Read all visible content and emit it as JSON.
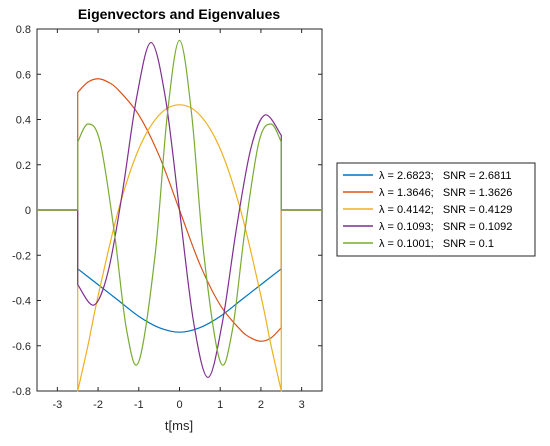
{
  "chart_data": {
    "type": "line",
    "title": "Eigenvectors and Eigenvalues",
    "xlabel": "t[ms]",
    "ylabel": "",
    "xlim": [
      -3.5,
      3.5
    ],
    "ylim": [
      -0.8,
      0.8
    ],
    "xticks": [
      -3,
      -2,
      -1,
      0,
      1,
      2,
      3
    ],
    "xtick_labels": [
      "-3",
      "-2",
      "-1",
      "0",
      "1",
      "2",
      "3"
    ],
    "yticks": [
      -0.8,
      -0.6,
      -0.4,
      -0.2,
      0,
      0.2,
      0.4,
      0.6,
      0.8
    ],
    "ytick_labels": [
      "-0.8",
      "-0.6",
      "-0.4",
      "-0.2",
      "0",
      "0.2",
      "0.4",
      "0.6",
      "0.8"
    ],
    "grid": false,
    "legend_position": "outside-right",
    "support_interval_ms": [
      -2.5,
      2.5
    ],
    "series": [
      {
        "name": "λ = 2.6823;   SNR = 2.6811",
        "color": "#0072BD",
        "x": [
          -3.5,
          -2.5,
          -2.5,
          -2.0,
          -1.5,
          -1.0,
          -0.5,
          0.0,
          0.5,
          1.0,
          1.5,
          2.0,
          2.5,
          2.5,
          3.5
        ],
        "y": [
          0,
          0,
          -0.26,
          -0.33,
          -0.4,
          -0.47,
          -0.52,
          -0.54,
          -0.52,
          -0.47,
          -0.4,
          -0.33,
          -0.26,
          0,
          0
        ]
      },
      {
        "name": "λ = 1.3646;   SNR = 1.3626",
        "color": "#D95319",
        "x": [
          -3.5,
          -2.5,
          -2.5,
          -2.25,
          -2.0,
          -1.75,
          -1.5,
          -1.0,
          -0.5,
          0.0,
          0.5,
          1.0,
          1.5,
          1.75,
          2.0,
          2.25,
          2.5,
          2.5,
          3.5
        ],
        "y": [
          0,
          0,
          0.52,
          0.565,
          0.58,
          0.565,
          0.53,
          0.42,
          0.24,
          0.0,
          -0.24,
          -0.42,
          -0.53,
          -0.565,
          -0.58,
          -0.565,
          -0.52,
          0,
          0
        ]
      },
      {
        "name": "λ = 0.4142;   SNR = 0.4129",
        "color": "#EDB120",
        "x": [
          -3.5,
          -2.5,
          -2.5,
          -2.25,
          -2.0,
          -1.5,
          -1.0,
          -0.5,
          0.0,
          0.5,
          1.0,
          1.5,
          2.0,
          2.25,
          2.5,
          2.5,
          3.5
        ],
        "y": [
          0,
          0,
          -0.8,
          -0.6,
          -0.38,
          0.0,
          0.27,
          0.42,
          0.465,
          0.42,
          0.27,
          0.0,
          -0.38,
          -0.6,
          -0.8,
          0,
          0
        ]
      },
      {
        "name": "λ = 0.1093;   SNR = 0.1092",
        "color": "#7E2F8E",
        "x": [
          -3.5,
          -2.5,
          -2.5,
          -2.1,
          -1.75,
          -1.4,
          -1.05,
          -0.7,
          -0.35,
          0.0,
          0.35,
          0.7,
          1.05,
          1.4,
          1.75,
          2.1,
          2.5,
          2.5,
          3.5
        ],
        "y": [
          0,
          0,
          -0.33,
          -0.42,
          -0.27,
          0.08,
          0.5,
          0.74,
          0.5,
          0.0,
          -0.5,
          -0.74,
          -0.5,
          -0.08,
          0.27,
          0.42,
          0.33,
          0,
          0
        ]
      },
      {
        "name": "λ = 0.1001;   SNR = 0.1",
        "color": "#77AC30",
        "x": [
          -3.5,
          -2.5,
          -2.5,
          -2.25,
          -1.95,
          -1.6,
          -1.3,
          -1.0,
          -0.6,
          -0.3,
          0.0,
          0.3,
          0.6,
          1.0,
          1.3,
          1.6,
          1.95,
          2.25,
          2.5,
          2.5,
          3.5
        ],
        "y": [
          0,
          0,
          0.3,
          0.38,
          0.3,
          -0.1,
          -0.53,
          -0.67,
          -0.2,
          0.42,
          0.75,
          0.42,
          -0.2,
          -0.67,
          -0.53,
          -0.1,
          0.3,
          0.38,
          0.3,
          0,
          0
        ]
      }
    ]
  }
}
